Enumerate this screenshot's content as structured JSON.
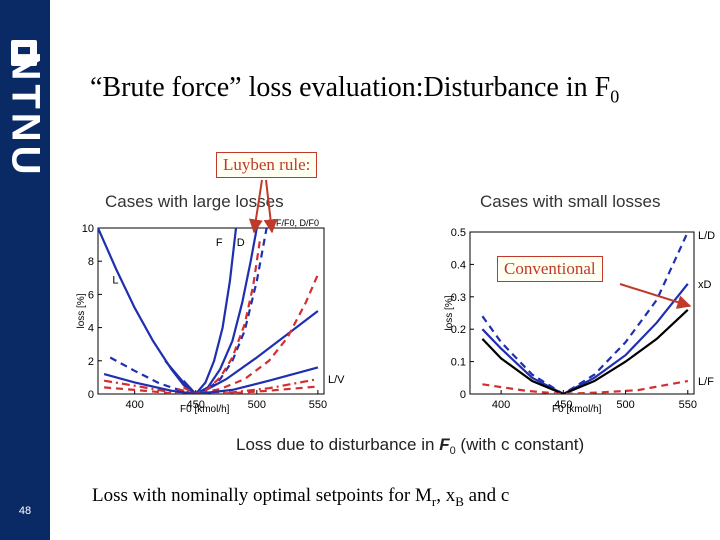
{
  "sidebar": {
    "logo_text": "NTNU",
    "page_number": "48"
  },
  "slide": {
    "title": "“Brute force” loss evaluation:Disturbance in F",
    "title_sub": "0",
    "callout_luyben": "Luyben rule:",
    "callout_conventional": "Conventional",
    "footer_pre": "Loss with nominally optimal setpoints for M",
    "footer_sub1": "r",
    "footer_mid": ", x",
    "footer_sub2": "B",
    "footer_post": " and c"
  },
  "figure": {
    "caption_pre": "Loss due to disturbance in ",
    "caption_var": "F",
    "caption_var_sub": "0",
    "caption_post": " (with c constant)"
  },
  "chart_data": [
    {
      "type": "line",
      "title": "Cases with large losses",
      "xlabel": "F0 [kmol/h]",
      "ylabel": "loss [%]",
      "xlim": [
        370,
        555
      ],
      "ylim": [
        0,
        10
      ],
      "x_ticks": [
        "400",
        "450",
        "500",
        "550"
      ],
      "y_ticks": [
        "0",
        "2",
        "4",
        "6",
        "8",
        "10"
      ],
      "series": [
        {
          "name": "L",
          "color": "#1f2fb0",
          "dash": "solid",
          "label_pos": "left",
          "x": [
            370,
            385,
            400,
            415,
            430,
            440,
            450,
            460,
            475,
            500,
            525,
            550
          ],
          "y": [
            10,
            7.5,
            5.2,
            3.2,
            1.5,
            0.55,
            0,
            0.3,
            0.9,
            2.2,
            3.6,
            5.0
          ]
        },
        {
          "name": "L-dash",
          "color": "#1f2fb0",
          "dash": "dash",
          "label_pos": "none",
          "x": [
            380,
            400,
            420,
            440,
            450,
            460,
            470,
            480,
            490,
            500,
            508
          ],
          "y": [
            2.2,
            1.4,
            0.65,
            0.15,
            0,
            0.3,
            0.9,
            2.0,
            3.8,
            6.8,
            10
          ]
        },
        {
          "name": "F",
          "color": "#1f2fb0",
          "dash": "solid",
          "label_pos": "right",
          "x": [
            425,
            440,
            450,
            458,
            465,
            472,
            478,
            483
          ],
          "y": [
            2.0,
            0.7,
            0,
            0.7,
            2.0,
            4.0,
            6.8,
            10
          ]
        },
        {
          "name": "D",
          "color": "#1f2fb0",
          "dash": "solid",
          "label_pos": "right",
          "x": [
            440,
            450,
            460,
            470,
            480,
            488,
            495,
            500
          ],
          "y": [
            0.8,
            0,
            0.4,
            1.5,
            3.2,
            5.5,
            8.0,
            10
          ]
        },
        {
          "name": "F/F0",
          "color": "#d32f2f",
          "dash": "dash",
          "label_pos": "none",
          "x": [
            440,
            450,
            460,
            470,
            480,
            490,
            497,
            503
          ],
          "y": [
            0.4,
            0,
            0.3,
            1.0,
            2.2,
            4.2,
            6.5,
            9.5
          ]
        },
        {
          "name": "D/F0",
          "color": "#d32f2f",
          "dash": "dash",
          "label_pos": "none",
          "x": [
            435,
            450,
            470,
            490,
            510,
            525,
            540,
            550
          ],
          "y": [
            0.3,
            0,
            0.3,
            0.9,
            2.0,
            3.4,
            5.5,
            7.2
          ]
        },
        {
          "name": "L/V",
          "color": "#d32f2f",
          "dash": "dashdot",
          "label_pos": "end",
          "x": [
            375,
            400,
            430,
            450,
            480,
            510,
            550
          ],
          "y": [
            0.8,
            0.5,
            0.1,
            0,
            0.1,
            0.35,
            0.9
          ]
        },
        {
          "name": "L/V-red-low",
          "color": "#d32f2f",
          "dash": "dash",
          "label_pos": "none",
          "x": [
            375,
            400,
            430,
            450,
            480,
            510,
            550
          ],
          "y": [
            0.4,
            0.25,
            0.05,
            0,
            0.05,
            0.2,
            0.45
          ]
        },
        {
          "name": "L-blue-flat",
          "color": "#1f2fb0",
          "dash": "solid",
          "label_pos": "none",
          "x": [
            375,
            400,
            430,
            450,
            480,
            510,
            550
          ],
          "y": [
            1.2,
            0.7,
            0.2,
            0,
            0.25,
            0.8,
            1.6
          ]
        }
      ],
      "annotations": [
        "L",
        "F",
        "D",
        "F/F0",
        "D/F0",
        "L/V"
      ]
    },
    {
      "type": "line",
      "title": "Cases with small losses",
      "xlabel": "F0 [kmol/h]",
      "ylabel": "loss [%]",
      "xlim": [
        375,
        555
      ],
      "ylim": [
        0,
        0.5
      ],
      "x_ticks": [
        "400",
        "450",
        "500",
        "550"
      ],
      "y_ticks": [
        "0",
        "0.1",
        "0.2",
        "0.3",
        "0.4",
        "0.5"
      ],
      "series": [
        {
          "name": "L/D",
          "color": "#1f2fb0",
          "dash": "dash",
          "label_pos": "end",
          "x": [
            385,
            400,
            425,
            450,
            475,
            500,
            525,
            550
          ],
          "y": [
            0.24,
            0.16,
            0.06,
            0,
            0.06,
            0.16,
            0.29,
            0.5
          ]
        },
        {
          "name": "xD",
          "color": "#1f2fb0",
          "dash": "solid",
          "label_pos": "end",
          "x": [
            385,
            400,
            425,
            450,
            475,
            500,
            525,
            550
          ],
          "y": [
            0.2,
            0.14,
            0.05,
            0,
            0.05,
            0.12,
            0.22,
            0.34
          ]
        },
        {
          "name": "xD-black",
          "color": "#000000",
          "dash": "solid",
          "label_pos": "none",
          "x": [
            385,
            400,
            425,
            450,
            475,
            500,
            525,
            550
          ],
          "y": [
            0.17,
            0.11,
            0.04,
            0,
            0.04,
            0.1,
            0.17,
            0.26
          ]
        },
        {
          "name": "L/F",
          "color": "#d32f2f",
          "dash": "dash",
          "label_pos": "end",
          "x": [
            385,
            420,
            450,
            480,
            510,
            550
          ],
          "y": [
            0.03,
            0.01,
            0,
            0.005,
            0.012,
            0.04
          ]
        }
      ],
      "annotations": [
        "L/D",
        "xD",
        "L/F"
      ]
    }
  ]
}
